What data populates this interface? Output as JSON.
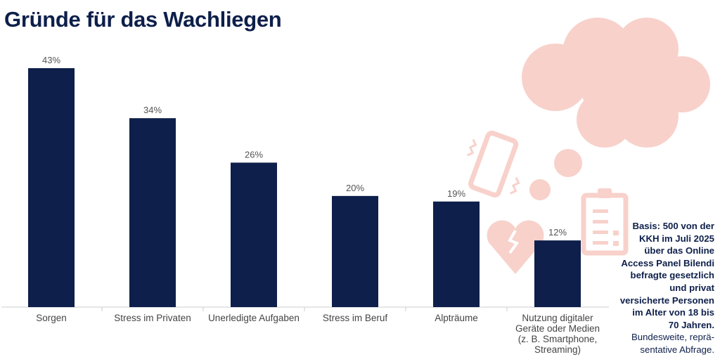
{
  "chart_data": {
    "type": "bar",
    "title": "Gründe für das Wachliegen",
    "categories": [
      "Sorgen",
      "Stress im Privaten",
      "Unerledigte Aufgaben",
      "Stress im Beruf",
      "Alpträume",
      "Nutzung digitaler Geräte oder Medien (z. B. Smartphone, Streaming)"
    ],
    "category_lines": [
      [
        "Sorgen"
      ],
      [
        "Stress im Privaten"
      ],
      [
        "Unerledigte Aufgaben"
      ],
      [
        "Stress im Beruf"
      ],
      [
        "Alpträume"
      ],
      [
        "Nutzung digitaler",
        "Geräte oder Medien",
        "(z. B. Smartphone,",
        "Streaming)"
      ]
    ],
    "values": [
      43,
      34,
      26,
      20,
      19,
      12
    ],
    "labels": [
      "43%",
      "34%",
      "26%",
      "20%",
      "19%",
      "12%"
    ],
    "unit": "%",
    "ylim": [
      0,
      45
    ],
    "grid": false,
    "xlabel": "",
    "ylabel": "",
    "bar_color": "#0d1f4a"
  },
  "note": {
    "bold": "Basis: 500 von der KKH im Juli 2025 über das Online Access Panel Bilendi befragte gesetzlich und privat versicherte Personen im Alter von 18 bis 70 Jahren.",
    "regular": "Bundesweite, repräsentative Abfrage.",
    "bold_lines": [
      "Basis: 500 von der",
      "KKH im Juli 2025",
      "über das Online",
      "Access Panel Bilendi",
      "befragte gesetzlich",
      "und privat",
      "versicherte Personen",
      "im Alter von 18 bis",
      "70 Jahren."
    ],
    "regular_lines": [
      "Bundesweite, reprä-",
      "sentative Abfrage."
    ]
  },
  "decor_color": "#f7c9c2"
}
